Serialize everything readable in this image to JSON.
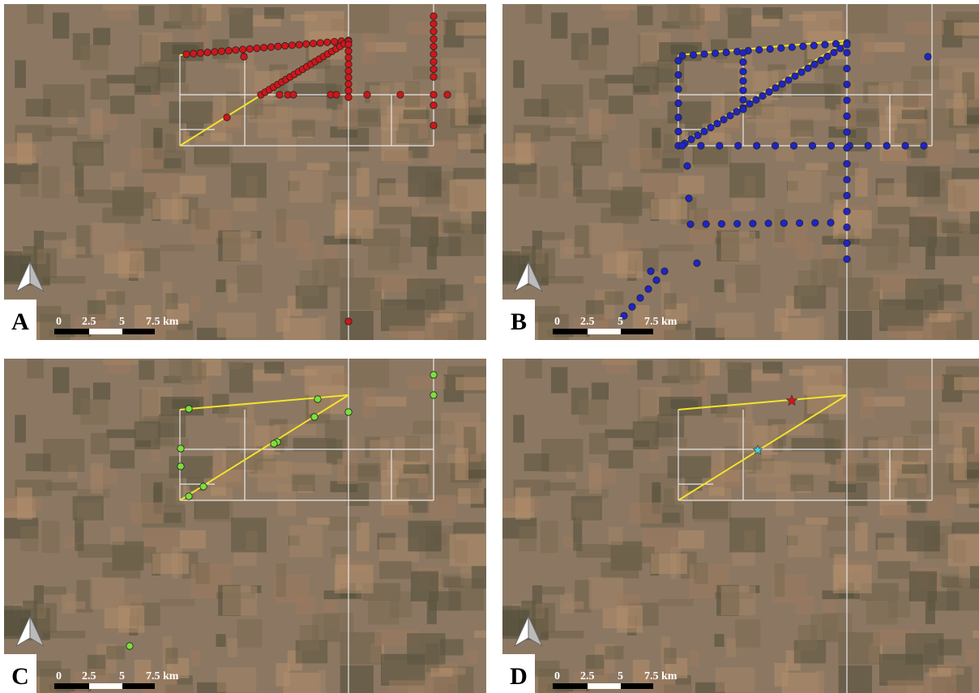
{
  "panels": [
    {
      "label": "A",
      "scale_labels": [
        "0",
        "2.5",
        "5",
        "7.5 km"
      ]
    },
    {
      "label": "B",
      "scale_labels": [
        "0",
        "2.5",
        "5",
        "7.5 km"
      ]
    },
    {
      "label": "C",
      "scale_labels": [
        "0",
        "2.5",
        "5",
        "7.5 km"
      ]
    },
    {
      "label": "D",
      "scale_labels": [
        "0",
        "2.5",
        "5",
        "7.5 km"
      ]
    }
  ]
}
